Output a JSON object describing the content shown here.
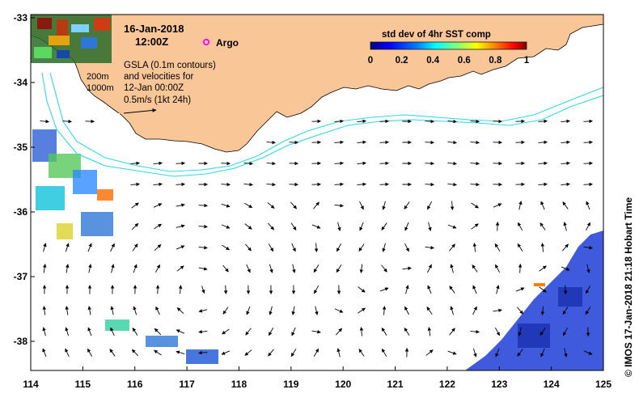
{
  "header": {
    "date": "16-Jan-2018",
    "time": "12:00Z",
    "argo_label": "Argo"
  },
  "colorbar": {
    "title": "std dev of 4hr SST comp",
    "ticks": [
      "0",
      "0.2",
      "0.4",
      "0.6",
      "0.8",
      "1"
    ],
    "stops": [
      "#00007f",
      "#0000ff",
      "#007fff",
      "#00ffff",
      "#7fff7f",
      "#ffff00",
      "#ff7f00",
      "#ff0000",
      "#7f0000"
    ]
  },
  "notes": {
    "isobath_200": "200m",
    "isobath_1000": "1000m",
    "line1": "GSLA (0.1m contours)",
    "line2": "and velocities for",
    "line3": "12-Jan 00:00Z",
    "line4": "0.5m/s (1kt 24h)"
  },
  "credit": "©  IMOS 17-Jan-2018 21:18 Hobart Time",
  "axes": {
    "x_ticks": [
      "114",
      "115",
      "116",
      "117",
      "118",
      "119",
      "120",
      "121",
      "122",
      "123",
      "124",
      "125"
    ],
    "y_ticks": [
      "-33",
      "-34",
      "-35",
      "-36",
      "-37",
      "-38"
    ]
  },
  "colors": {
    "land": "#f9c697",
    "contour": "#2fd8e8",
    "argo": "#ff00ff",
    "frame": "#000000"
  }
}
